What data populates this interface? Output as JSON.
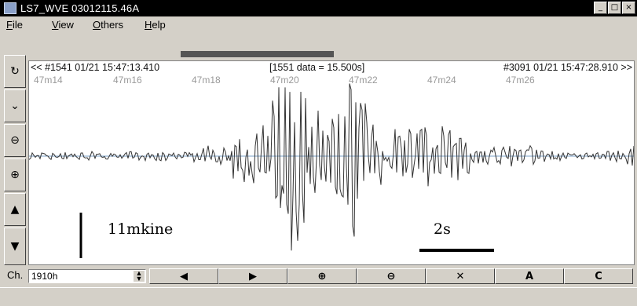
{
  "window": {
    "title": "LS7_WVE  03012115.46A",
    "minimize": "_",
    "maximize": "□",
    "close": "×"
  },
  "menu": {
    "items": [
      {
        "label": "File",
        "underline": "F",
        "rest": "ile"
      },
      {
        "label": "View",
        "underline": "V",
        "rest": "iew"
      },
      {
        "label": "Others",
        "underline": "O",
        "rest": "thers"
      },
      {
        "label": "Help",
        "underline": "H",
        "rest": "elp"
      }
    ]
  },
  "toolbar_left": {
    "buttons": [
      {
        "name": "reload-icon",
        "glyph": "↻"
      },
      {
        "name": "pan-down-icon",
        "glyph": "⌄"
      },
      {
        "name": "zoom-out-icon",
        "glyph": "⊖"
      },
      {
        "name": "zoom-in-icon",
        "glyph": "⊕"
      },
      {
        "name": "scale-up-icon",
        "glyph": "▲"
      },
      {
        "name": "scale-down-icon",
        "glyph": "▼"
      }
    ]
  },
  "plot": {
    "start_label": "<< #1541 01/21 15:47:13.410",
    "data_label": "[1551 data = 15.500s]",
    "end_label": "#3091 01/21 15:47:28.910 >>",
    "time_ticks": [
      "47m14",
      "47m16",
      "47m18",
      "47m20",
      "47m22",
      "47m24",
      "47m26"
    ],
    "amplitude_scale": "11mkine",
    "time_scale": "2s",
    "trace_color": "#333333",
    "baseline_color": "#7aa0c8"
  },
  "bottom": {
    "channel_label": "Ch.",
    "channel_value": "1910h",
    "buttons": [
      {
        "name": "prev-button",
        "glyph": "◀"
      },
      {
        "name": "next-button",
        "glyph": "▶"
      },
      {
        "name": "zoom-in-button",
        "glyph": "⊕"
      },
      {
        "name": "zoom-out-button",
        "glyph": "⊖"
      },
      {
        "name": "close-trace-button",
        "glyph": "✕"
      },
      {
        "name": "a-button",
        "glyph": "A"
      },
      {
        "name": "c-button",
        "glyph": "C"
      }
    ]
  }
}
